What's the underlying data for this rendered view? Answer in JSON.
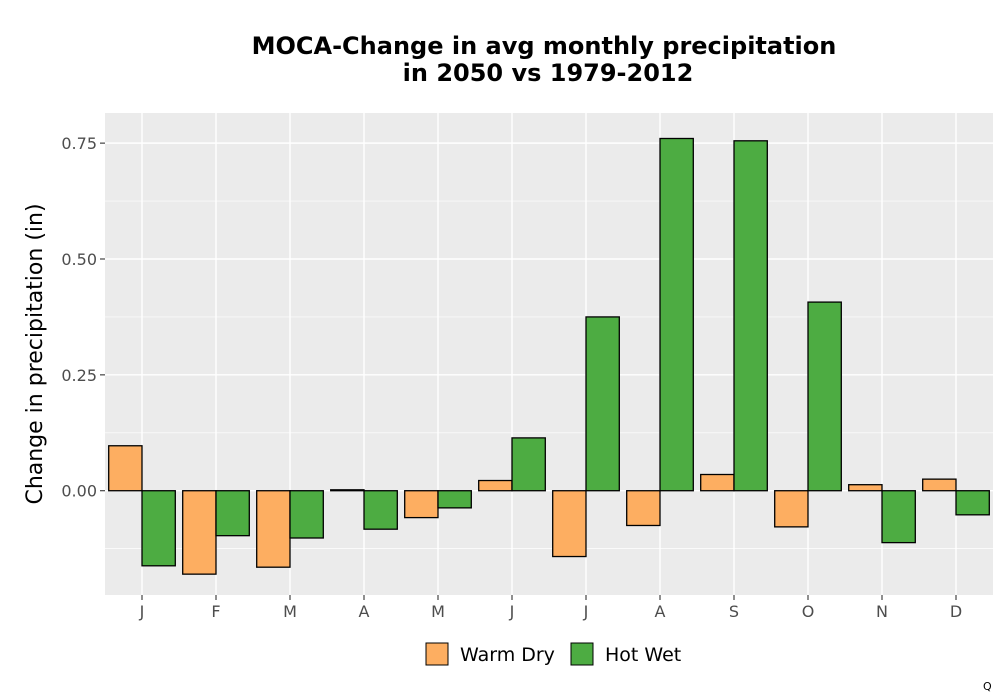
{
  "chart_data": {
    "type": "bar",
    "title_lines": [
      "MOCA-Change in avg monthly precipitation",
      "in 2050 vs 1979-2012"
    ],
    "xlabel": "",
    "ylabel": "Change in precipitation (in)",
    "categories": [
      "J",
      "F",
      "M",
      "A",
      "M",
      "J",
      "J",
      "A",
      "S",
      "O",
      "N",
      "D"
    ],
    "series": [
      {
        "name": "Warm Dry",
        "color": "#FDAE61",
        "values": [
          0.097,
          -0.18,
          -0.165,
          0.002,
          -0.058,
          0.022,
          -0.142,
          -0.075,
          0.035,
          -0.078,
          0.013,
          0.025
        ]
      },
      {
        "name": "Hot Wet",
        "color": "#4DAC42",
        "values": [
          -0.162,
          -0.097,
          -0.102,
          -0.083,
          -0.037,
          0.114,
          0.375,
          0.76,
          0.755,
          0.407,
          -0.112,
          -0.052
        ]
      }
    ],
    "ylim": [
      -0.225,
      0.815
    ],
    "yticks": [
      0.0,
      0.25,
      0.5,
      0.75
    ],
    "ytick_labels": [
      "0.00",
      "0.25",
      "0.50",
      "0.75"
    ],
    "grid": true,
    "panel_background": "#EBEBEB",
    "legend_position": "bottom",
    "corner_note": "Q"
  }
}
